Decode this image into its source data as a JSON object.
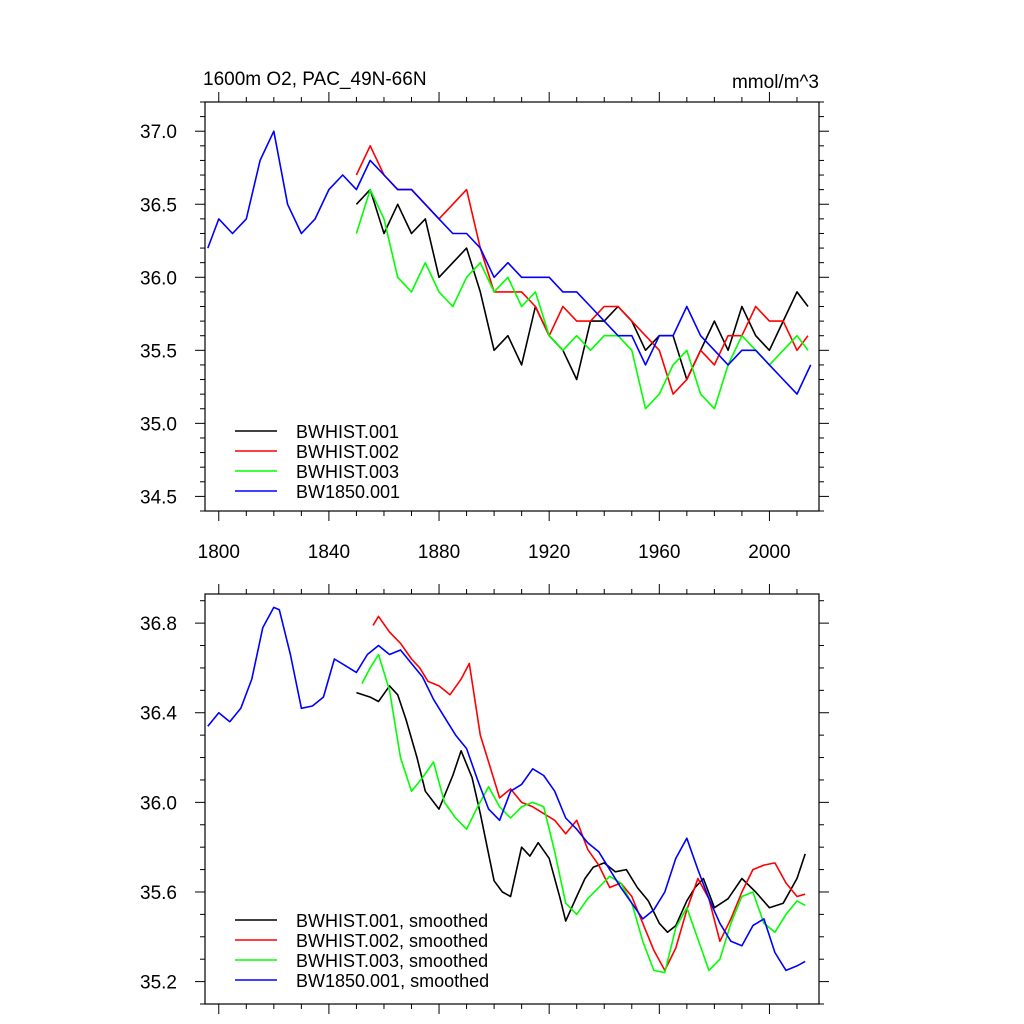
{
  "colors": {
    "BWHIST.001": "#000000",
    "BWHIST.002": "#ff0000",
    "BWHIST.003": "#00ff00",
    "BW1850.001": "#0000ff"
  },
  "chart_data": [
    {
      "type": "line",
      "title": "1600m O2, PAC_49N-66N",
      "units": "mmol/m^3",
      "xlim": [
        1795,
        2018
      ],
      "ylim": [
        34.4,
        37.2
      ],
      "xticks": [
        1800,
        1840,
        1880,
        1920,
        1960,
        2000
      ],
      "xtick_labels": [
        "1800",
        "1840",
        "1880",
        "1920",
        "1960",
        "2000"
      ],
      "yticks": [
        34.5,
        35.0,
        35.5,
        36.0,
        36.5,
        37.0
      ],
      "ytick_labels": [
        "34.5",
        "35.0",
        "35.5",
        "36.0",
        "36.5",
        "37.0"
      ],
      "legend_position": "bottom-left",
      "series": [
        {
          "name": "BWHIST.001",
          "x": [
            1850,
            1855,
            1860,
            1865,
            1870,
            1875,
            1880,
            1885,
            1890,
            1895,
            1900,
            1905,
            1910,
            1915,
            1920,
            1925,
            1930,
            1935,
            1940,
            1945,
            1950,
            1955,
            1960,
            1965,
            1970,
            1975,
            1980,
            1985,
            1990,
            1995,
            2000,
            2005,
            2010,
            2014
          ],
          "y": [
            36.5,
            36.6,
            36.3,
            36.5,
            36.3,
            36.4,
            36.0,
            36.1,
            36.2,
            35.9,
            35.5,
            35.6,
            35.4,
            35.8,
            35.6,
            35.5,
            35.3,
            35.7,
            35.7,
            35.8,
            35.7,
            35.5,
            35.6,
            35.6,
            35.3,
            35.5,
            35.7,
            35.5,
            35.8,
            35.6,
            35.5,
            35.7,
            35.9,
            35.8
          ]
        },
        {
          "name": "BWHIST.002",
          "x": [
            1850,
            1855,
            1860,
            1865,
            1870,
            1875,
            1880,
            1885,
            1890,
            1895,
            1900,
            1905,
            1910,
            1915,
            1920,
            1925,
            1930,
            1935,
            1940,
            1945,
            1950,
            1955,
            1960,
            1965,
            1970,
            1975,
            1980,
            1985,
            1990,
            1995,
            2000,
            2005,
            2010,
            2014
          ],
          "y": [
            36.7,
            36.9,
            36.7,
            36.6,
            36.6,
            36.5,
            36.4,
            36.5,
            36.6,
            36.2,
            35.9,
            35.9,
            35.9,
            35.8,
            35.6,
            35.8,
            35.7,
            35.7,
            35.8,
            35.8,
            35.7,
            35.6,
            35.5,
            35.2,
            35.3,
            35.5,
            35.4,
            35.6,
            35.6,
            35.8,
            35.7,
            35.7,
            35.5,
            35.6
          ]
        },
        {
          "name": "BWHIST.003",
          "x": [
            1850,
            1855,
            1860,
            1865,
            1870,
            1875,
            1880,
            1885,
            1890,
            1895,
            1900,
            1905,
            1910,
            1915,
            1920,
            1925,
            1930,
            1935,
            1940,
            1945,
            1950,
            1955,
            1960,
            1965,
            1970,
            1975,
            1980,
            1985,
            1990,
            1995,
            2000,
            2005,
            2010,
            2014
          ],
          "y": [
            36.3,
            36.6,
            36.4,
            36.0,
            35.9,
            36.1,
            35.9,
            35.8,
            36.0,
            36.1,
            35.9,
            36.0,
            35.8,
            35.9,
            35.6,
            35.5,
            35.6,
            35.5,
            35.6,
            35.6,
            35.5,
            35.1,
            35.2,
            35.4,
            35.5,
            35.2,
            35.1,
            35.4,
            35.6,
            35.5,
            35.4,
            35.5,
            35.6,
            35.5
          ]
        },
        {
          "name": "BW1850.001",
          "x": [
            1796,
            1800,
            1805,
            1810,
            1815,
            1820,
            1825,
            1830,
            1835,
            1840,
            1845,
            1850,
            1855,
            1860,
            1865,
            1870,
            1875,
            1880,
            1885,
            1890,
            1895,
            1900,
            1905,
            1910,
            1915,
            1920,
            1925,
            1930,
            1935,
            1940,
            1945,
            1950,
            1955,
            1960,
            1965,
            1970,
            1975,
            1980,
            1985,
            1990,
            1995,
            2000,
            2005,
            2010,
            2015
          ],
          "y": [
            36.2,
            36.4,
            36.3,
            36.4,
            36.8,
            37.0,
            36.5,
            36.3,
            36.4,
            36.6,
            36.7,
            36.6,
            36.8,
            36.7,
            36.6,
            36.6,
            36.5,
            36.4,
            36.3,
            36.3,
            36.2,
            36.0,
            36.1,
            36.0,
            36.0,
            36.0,
            35.9,
            35.9,
            35.8,
            35.7,
            35.6,
            35.6,
            35.4,
            35.6,
            35.6,
            35.8,
            35.6,
            35.5,
            35.4,
            35.5,
            35.5,
            35.4,
            35.3,
            35.2,
            35.4
          ]
        }
      ]
    },
    {
      "type": "line",
      "xlim": [
        1795,
        2018
      ],
      "ylim": [
        35.1,
        36.93
      ],
      "xticks": [
        1800,
        1840,
        1880,
        1920,
        1960,
        2000
      ],
      "yticks": [
        35.2,
        35.6,
        36.0,
        36.4,
        36.8
      ],
      "ytick_labels": [
        "35.2",
        "35.6",
        "36.0",
        "36.4",
        "36.8"
      ],
      "legend_position": "bottom-left",
      "series": [
        {
          "name": "BWHIST.001, smoothed",
          "x": [
            1850,
            1855,
            1858,
            1862,
            1865,
            1868,
            1872,
            1875,
            1880,
            1885,
            1888,
            1892,
            1895,
            1900,
            1903,
            1906,
            1910,
            1913,
            1916,
            1920,
            1924,
            1926,
            1930,
            1933,
            1936,
            1940,
            1944,
            1948,
            1952,
            1956,
            1960,
            1963,
            1966,
            1970,
            1973,
            1976,
            1980,
            1985,
            1990,
            1995,
            2000,
            2005,
            2010,
            2013
          ],
          "y": [
            36.49,
            36.47,
            36.45,
            36.52,
            36.48,
            36.37,
            36.2,
            36.05,
            35.97,
            36.12,
            36.23,
            36.11,
            35.95,
            35.65,
            35.6,
            35.58,
            35.8,
            35.76,
            35.82,
            35.75,
            35.57,
            35.47,
            35.58,
            35.66,
            35.71,
            35.73,
            35.69,
            35.7,
            35.62,
            35.56,
            35.46,
            35.42,
            35.45,
            35.56,
            35.62,
            35.66,
            35.53,
            35.57,
            35.66,
            35.6,
            35.53,
            35.55,
            35.66,
            35.77
          ]
        },
        {
          "name": "BWHIST.002, smoothed",
          "x": [
            1856,
            1858,
            1862,
            1866,
            1870,
            1873,
            1876,
            1880,
            1884,
            1888,
            1891,
            1895,
            1898,
            1902,
            1906,
            1910,
            1914,
            1918,
            1922,
            1926,
            1930,
            1934,
            1938,
            1942,
            1946,
            1950,
            1954,
            1958,
            1962,
            1966,
            1970,
            1974,
            1978,
            1982,
            1986,
            1990,
            1994,
            1998,
            2002,
            2006,
            2010,
            2013
          ],
          "y": [
            36.79,
            36.83,
            36.76,
            36.71,
            36.64,
            36.6,
            36.54,
            36.52,
            36.48,
            36.55,
            36.62,
            36.3,
            36.18,
            36.02,
            36.06,
            36.0,
            35.98,
            35.95,
            35.92,
            35.86,
            35.92,
            35.79,
            35.72,
            35.62,
            35.64,
            35.58,
            35.46,
            35.34,
            35.25,
            35.35,
            35.52,
            35.66,
            35.57,
            35.38,
            35.48,
            35.6,
            35.7,
            35.72,
            35.73,
            35.64,
            35.58,
            35.59
          ]
        },
        {
          "name": "BWHIST.003, smoothed",
          "x": [
            1852,
            1855,
            1858,
            1862,
            1866,
            1870,
            1874,
            1878,
            1882,
            1886,
            1890,
            1894,
            1898,
            1902,
            1906,
            1910,
            1914,
            1918,
            1922,
            1926,
            1930,
            1934,
            1938,
            1942,
            1946,
            1950,
            1954,
            1958,
            1962,
            1966,
            1970,
            1974,
            1978,
            1982,
            1986,
            1990,
            1994,
            1998,
            2002,
            2006,
            2010,
            2013
          ],
          "y": [
            36.53,
            36.6,
            36.66,
            36.5,
            36.2,
            36.05,
            36.11,
            36.18,
            36.0,
            35.93,
            35.88,
            35.98,
            36.07,
            35.98,
            35.93,
            35.98,
            36.0,
            35.98,
            35.78,
            35.55,
            35.5,
            35.57,
            35.62,
            35.67,
            35.64,
            35.55,
            35.38,
            35.25,
            35.24,
            35.44,
            35.53,
            35.39,
            35.25,
            35.3,
            35.46,
            35.58,
            35.6,
            35.46,
            35.42,
            35.5,
            35.56,
            35.54
          ]
        },
        {
          "name": "BW1850.001, smoothed",
          "x": [
            1796,
            1800,
            1804,
            1808,
            1812,
            1816,
            1820,
            1822,
            1826,
            1830,
            1834,
            1838,
            1842,
            1846,
            1850,
            1854,
            1858,
            1862,
            1866,
            1870,
            1874,
            1878,
            1882,
            1886,
            1890,
            1894,
            1898,
            1902,
            1906,
            1910,
            1914,
            1918,
            1922,
            1926,
            1930,
            1934,
            1938,
            1942,
            1946,
            1950,
            1954,
            1958,
            1962,
            1966,
            1970,
            1974,
            1978,
            1982,
            1986,
            1990,
            1994,
            1998,
            2002,
            2006,
            2010,
            2013
          ],
          "y": [
            36.34,
            36.4,
            36.36,
            36.42,
            36.55,
            36.78,
            36.87,
            36.86,
            36.66,
            36.42,
            36.43,
            36.47,
            36.64,
            36.61,
            36.58,
            36.66,
            36.7,
            36.66,
            36.68,
            36.62,
            36.56,
            36.46,
            36.38,
            36.3,
            36.24,
            36.1,
            35.97,
            35.92,
            36.05,
            36.08,
            36.15,
            36.12,
            36.05,
            35.93,
            35.88,
            35.82,
            35.78,
            35.7,
            35.62,
            35.55,
            35.48,
            35.52,
            35.6,
            35.75,
            35.84,
            35.7,
            35.57,
            35.46,
            35.38,
            35.36,
            35.45,
            35.48,
            35.33,
            35.25,
            35.27,
            35.29
          ]
        }
      ]
    }
  ]
}
